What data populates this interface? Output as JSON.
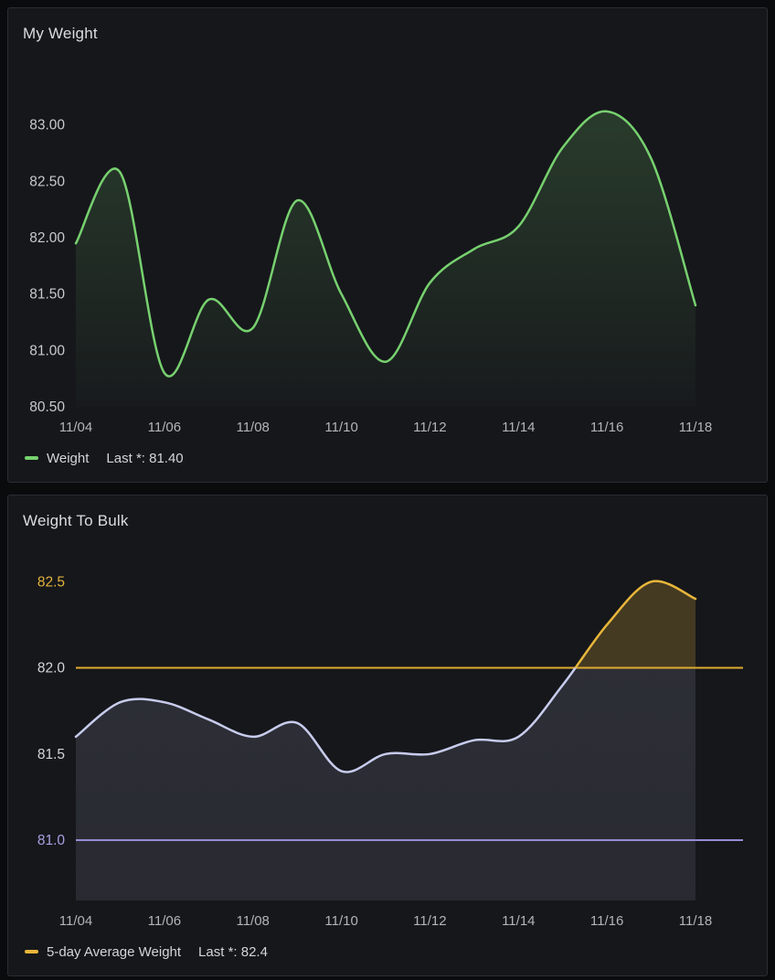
{
  "page": {
    "background": "#0a0b0d",
    "panel_background": "#16171b",
    "panel_border": "#2a2d33"
  },
  "panels": [
    {
      "title": "My Weight"
    },
    {
      "title": "Weight To Bulk"
    }
  ],
  "chart_data": [
    {
      "type": "line",
      "title": "My Weight",
      "interpolation": "smooth",
      "grid": false,
      "dates": [
        "11/04",
        "11/05",
        "11/06",
        "11/07",
        "11/08",
        "11/09",
        "11/10",
        "11/11",
        "11/12",
        "11/13",
        "11/14",
        "11/15",
        "11/16",
        "11/17",
        "11/18"
      ],
      "series": [
        {
          "name": "Weight",
          "color": "#77d16f",
          "fill": "gradient-opacity",
          "values": [
            81.95,
            82.58,
            80.8,
            81.45,
            81.2,
            82.33,
            81.5,
            80.9,
            81.6,
            81.9,
            82.1,
            82.8,
            83.12,
            82.7,
            81.4
          ]
        }
      ],
      "ylim": [
        80.5,
        83.5
      ],
      "y_ticks": [
        {
          "label": "83.00",
          "value": 83.0,
          "color": "#c9cace"
        },
        {
          "label": "82.50",
          "value": 82.5,
          "color": "#c9cace"
        },
        {
          "label": "82.00",
          "value": 82.0,
          "color": "#c9cace"
        },
        {
          "label": "81.50",
          "value": 81.5,
          "color": "#c9cace"
        },
        {
          "label": "81.00",
          "value": 81.0,
          "color": "#c9cace"
        },
        {
          "label": "80.50",
          "value": 80.5,
          "color": "#c9cace"
        }
      ],
      "x_tick_labels": [
        "11/04",
        "11/06",
        "11/08",
        "11/10",
        "11/12",
        "11/14",
        "11/16",
        "11/18"
      ],
      "x_tick_indices": [
        0,
        2,
        4,
        6,
        8,
        10,
        12,
        14
      ],
      "x_tick_color": "#b2b4ba",
      "legend": {
        "position": "bottom-left",
        "label": "Weight",
        "stat": "Last *: 81.40",
        "swatch_color": "#77d16f"
      }
    },
    {
      "type": "line",
      "title": "Weight To Bulk",
      "interpolation": "smooth",
      "grid": false,
      "dates": [
        "11/04",
        "11/05",
        "11/06",
        "11/07",
        "11/08",
        "11/09",
        "11/10",
        "11/11",
        "11/12",
        "11/13",
        "11/14",
        "11/15",
        "11/16",
        "11/17",
        "11/18"
      ],
      "series": [
        {
          "name": "5-day Average Weight",
          "color": "#c7ccec",
          "color_above_threshold": "#e8b63a",
          "threshold": 82.0,
          "fill": "area",
          "values": [
            81.6,
            81.8,
            81.8,
            81.7,
            81.6,
            81.68,
            81.4,
            81.5,
            81.5,
            81.58,
            81.6,
            81.9,
            82.25,
            82.5,
            82.4
          ]
        }
      ],
      "reference_lines": [
        {
          "value": 82.0,
          "color": "#e0ac2f"
        },
        {
          "value": 81.0,
          "color": "#968bd6"
        }
      ],
      "ylim": [
        80.65,
        82.65
      ],
      "y_ticks": [
        {
          "label": "82.5",
          "value": 82.5,
          "color": "#e2b33c"
        },
        {
          "label": "82.0",
          "value": 82.0,
          "color": "#d4d5d8"
        },
        {
          "label": "81.5",
          "value": 81.5,
          "color": "#d4d5d8"
        },
        {
          "label": "81.0",
          "value": 81.0,
          "color": "#ab9fe3"
        }
      ],
      "x_tick_labels": [
        "11/04",
        "11/06",
        "11/08",
        "11/10",
        "11/12",
        "11/14",
        "11/16",
        "11/18"
      ],
      "x_tick_indices": [
        0,
        2,
        4,
        6,
        8,
        10,
        12,
        14
      ],
      "x_tick_color": "#b2b4ba",
      "legend": {
        "position": "bottom-left",
        "label": "5-day Average Weight",
        "stat": "Last *: 82.4",
        "swatch_color": "#e8b63a"
      }
    }
  ]
}
